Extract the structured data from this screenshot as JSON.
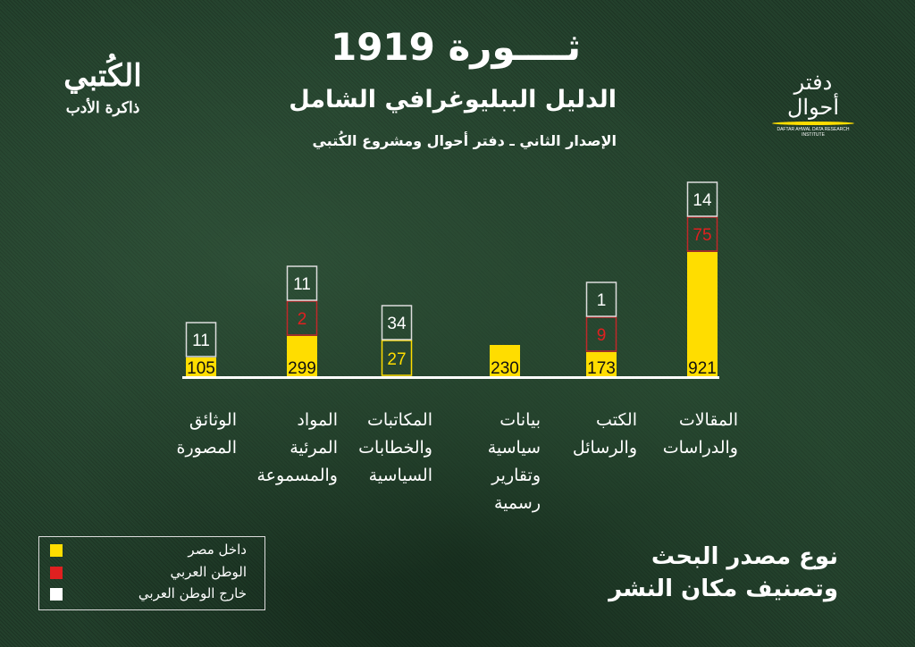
{
  "header": {
    "title": "ثــــورة 1919",
    "subtitle": "الدليل الببليوغرافي الشامل",
    "edition": "الإصدار الثاني ـ دفتر أحوال ومشروع الكُتبي"
  },
  "logos": {
    "left_top": "الكُتبي",
    "left_bottom": "ذاكرة الأدب",
    "right": "دفتر أحوال",
    "right_small": "DAFTAR AHWAL DATA RESEARCH INSTITUTE"
  },
  "footer": {
    "line1": "نوع مصدر البحث",
    "line2": "وتصنيف مكان النشر"
  },
  "colors": {
    "egypt": "#ffdd00",
    "arab": "#e02020",
    "outside": "#ffffff",
    "background": "#23402c"
  },
  "chart_data": {
    "type": "bar",
    "stacked": true,
    "categories": [
      "الوثائق المصورة",
      "المواد المرئية والمسموعة",
      "المكاتبات والخطابات السياسية",
      "بيانات سياسية وتقارير رسمية",
      "الكتب والرسائل",
      "المقالات والدراسات"
    ],
    "category_lines": [
      [
        "الوثائق",
        "المصورة"
      ],
      [
        "المواد",
        "المرئية",
        "والمسموعة"
      ],
      [
        "المكاتبات",
        "والخطابات",
        "السياسية"
      ],
      [
        "بيانات",
        "سياسية",
        "وتقارير",
        "رسمية"
      ],
      [
        "الكتب",
        "والرسائل"
      ],
      [
        "المقالات",
        "والدراسات"
      ]
    ],
    "series": [
      {
        "name": "داخل مصر",
        "values": [
          105,
          299,
          27,
          230,
          173,
          921
        ]
      },
      {
        "name": "الوطن العربي",
        "values": [
          null,
          2,
          null,
          null,
          9,
          75
        ]
      },
      {
        "name": "خارج الوطن العربي",
        "values": [
          11,
          11,
          34,
          null,
          1,
          14
        ]
      }
    ],
    "legend": "bottom-left"
  }
}
